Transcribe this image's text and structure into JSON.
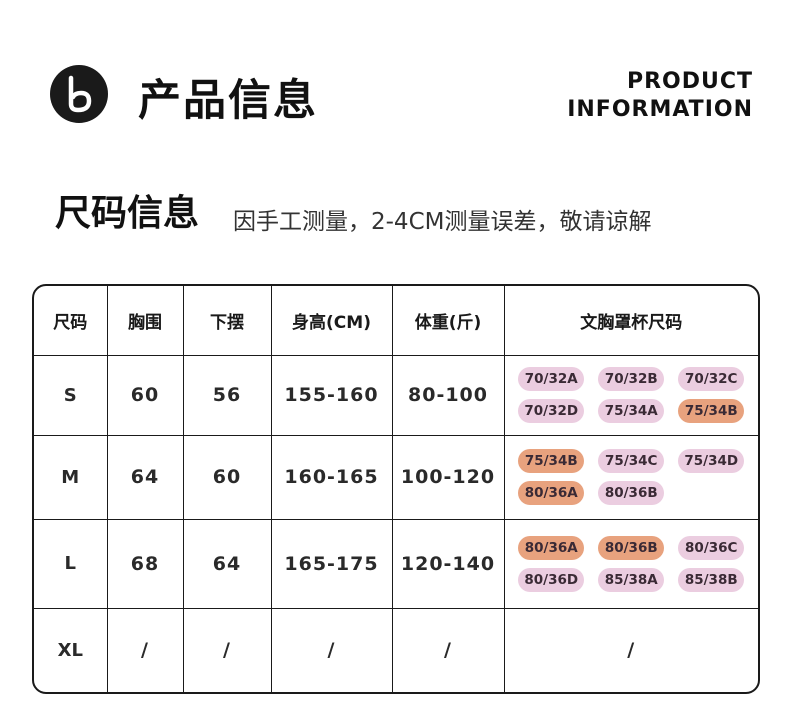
{
  "header": {
    "logo_icon": "b-logo-icon",
    "title_cn": "产品信息",
    "title_en_line1": "PRODUCT",
    "title_en_line2": "INFORMATION"
  },
  "section": {
    "title": "尺码信息",
    "note": "因手工测量，2-4CM测量误差，敬请谅解"
  },
  "colors": {
    "pink": "#ebcde0",
    "orange": "#e8a27e",
    "text": "#1a1a1a"
  },
  "table": {
    "headers": [
      "尺码",
      "胸围",
      "下摆",
      "身高(CM)",
      "体重(斤)",
      "文胸罩杯尺码"
    ],
    "rows": [
      {
        "size": "S",
        "chest": "60",
        "hem": "56",
        "height": "155-160",
        "weight": "80-100",
        "cups": [
          {
            "label": "70/32A",
            "tone": "pink"
          },
          {
            "label": "70/32B",
            "tone": "pink"
          },
          {
            "label": "70/32C",
            "tone": "pink"
          },
          {
            "label": "70/32D",
            "tone": "pink"
          },
          {
            "label": "75/34A",
            "tone": "pink"
          },
          {
            "label": "75/34B",
            "tone": "orange"
          }
        ]
      },
      {
        "size": "M",
        "chest": "64",
        "hem": "60",
        "height": "160-165",
        "weight": "100-120",
        "cups": [
          {
            "label": "75/34B",
            "tone": "orange"
          },
          {
            "label": "75/34C",
            "tone": "pink"
          },
          {
            "label": "75/34D",
            "tone": "pink"
          },
          {
            "label": "80/36A",
            "tone": "orange"
          },
          {
            "label": "80/36B",
            "tone": "pink"
          }
        ]
      },
      {
        "size": "L",
        "chest": "68",
        "hem": "64",
        "height": "165-175",
        "weight": "120-140",
        "cups": [
          {
            "label": "80/36A",
            "tone": "orange"
          },
          {
            "label": "80/36B",
            "tone": "orange"
          },
          {
            "label": "80/36C",
            "tone": "pink"
          },
          {
            "label": "80/36D",
            "tone": "pink"
          },
          {
            "label": "85/38A",
            "tone": "pink"
          },
          {
            "label": "85/38B",
            "tone": "pink"
          }
        ]
      },
      {
        "size": "XL",
        "chest": "/",
        "hem": "/",
        "height": "/",
        "weight": "/",
        "cups_text": "/"
      }
    ]
  }
}
